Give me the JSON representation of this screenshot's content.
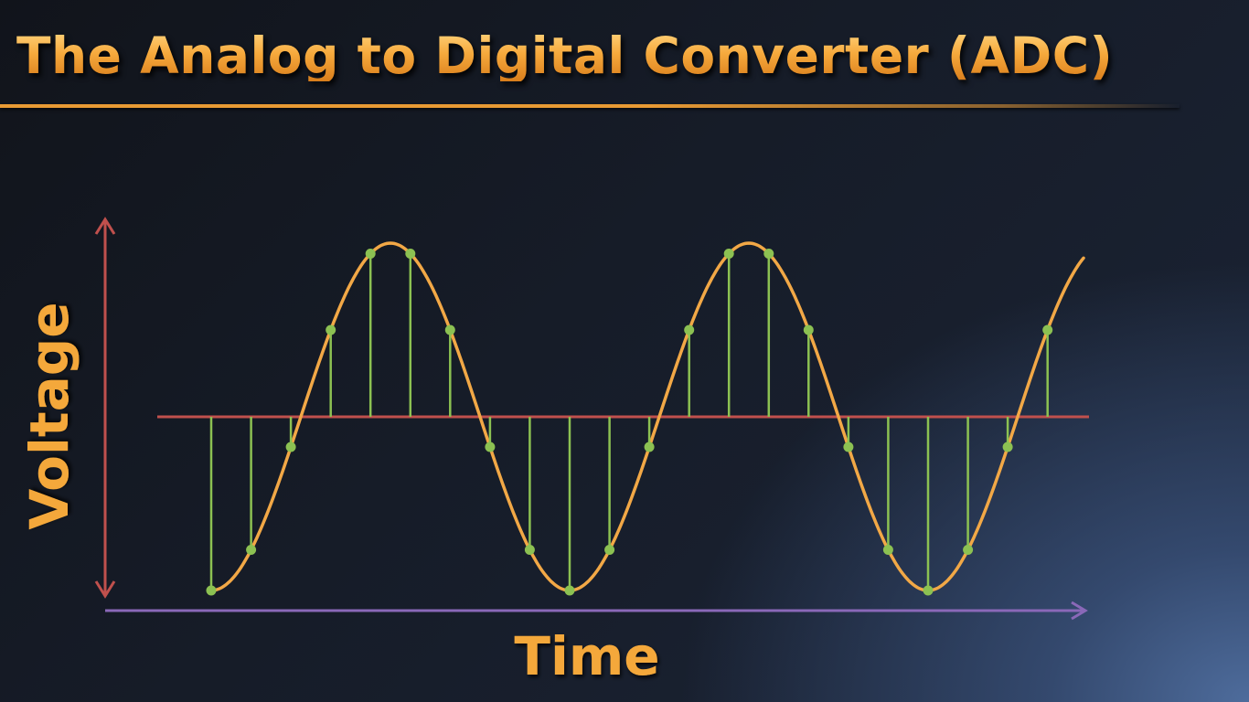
{
  "title": "The Analog to Digital Converter (ADC)",
  "x_axis_label": "Time",
  "y_axis_label": "Voltage",
  "colors": {
    "title": "#f4a83a",
    "signal": "#f2a846",
    "samples": "#8cc152",
    "voltage_axis": "#c0504d",
    "baseline": "#c0504d",
    "time_axis": "#8a68b8"
  },
  "signal": {
    "shape": "sine",
    "cycles_shown": 2.25,
    "samples_per_cycle": 9,
    "sample_count": 22
  }
}
